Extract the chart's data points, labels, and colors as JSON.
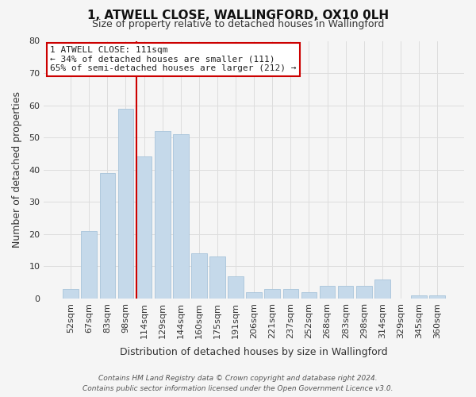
{
  "title1": "1, ATWELL CLOSE, WALLINGFORD, OX10 0LH",
  "title2": "Size of property relative to detached houses in Wallingford",
  "xlabel": "Distribution of detached houses by size in Wallingford",
  "ylabel": "Number of detached properties",
  "bar_labels": [
    "52sqm",
    "67sqm",
    "83sqm",
    "98sqm",
    "114sqm",
    "129sqm",
    "144sqm",
    "160sqm",
    "175sqm",
    "191sqm",
    "206sqm",
    "221sqm",
    "237sqm",
    "252sqm",
    "268sqm",
    "283sqm",
    "298sqm",
    "314sqm",
    "329sqm",
    "345sqm",
    "360sqm"
  ],
  "bar_values": [
    3,
    21,
    39,
    59,
    44,
    52,
    51,
    14,
    13,
    7,
    2,
    3,
    3,
    2,
    4,
    4,
    4,
    6,
    0,
    1,
    1
  ],
  "bar_color": "#c5d9ea",
  "bar_edge_color": "#a8c4da",
  "vline_bar_index": 4,
  "vline_color": "#cc0000",
  "ylim": [
    0,
    80
  ],
  "yticks": [
    0,
    10,
    20,
    30,
    40,
    50,
    60,
    70,
    80
  ],
  "annotation_line0": "1 ATWELL CLOSE: 111sqm",
  "annotation_line1": "← 34% of detached houses are smaller (111)",
  "annotation_line2": "65% of semi-detached houses are larger (212) →",
  "annotation_box_facecolor": "#ffffff",
  "annotation_box_edgecolor": "#cc0000",
  "footer1": "Contains HM Land Registry data © Crown copyright and database right 2024.",
  "footer2": "Contains public sector information licensed under the Open Government Licence v3.0.",
  "grid_color": "#dddddd",
  "background_color": "#f5f5f5",
  "title1_fontsize": 11,
  "title2_fontsize": 9,
  "xlabel_fontsize": 9,
  "ylabel_fontsize": 9,
  "tick_fontsize": 8,
  "annotation_fontsize": 8,
  "footer_fontsize": 6.5
}
